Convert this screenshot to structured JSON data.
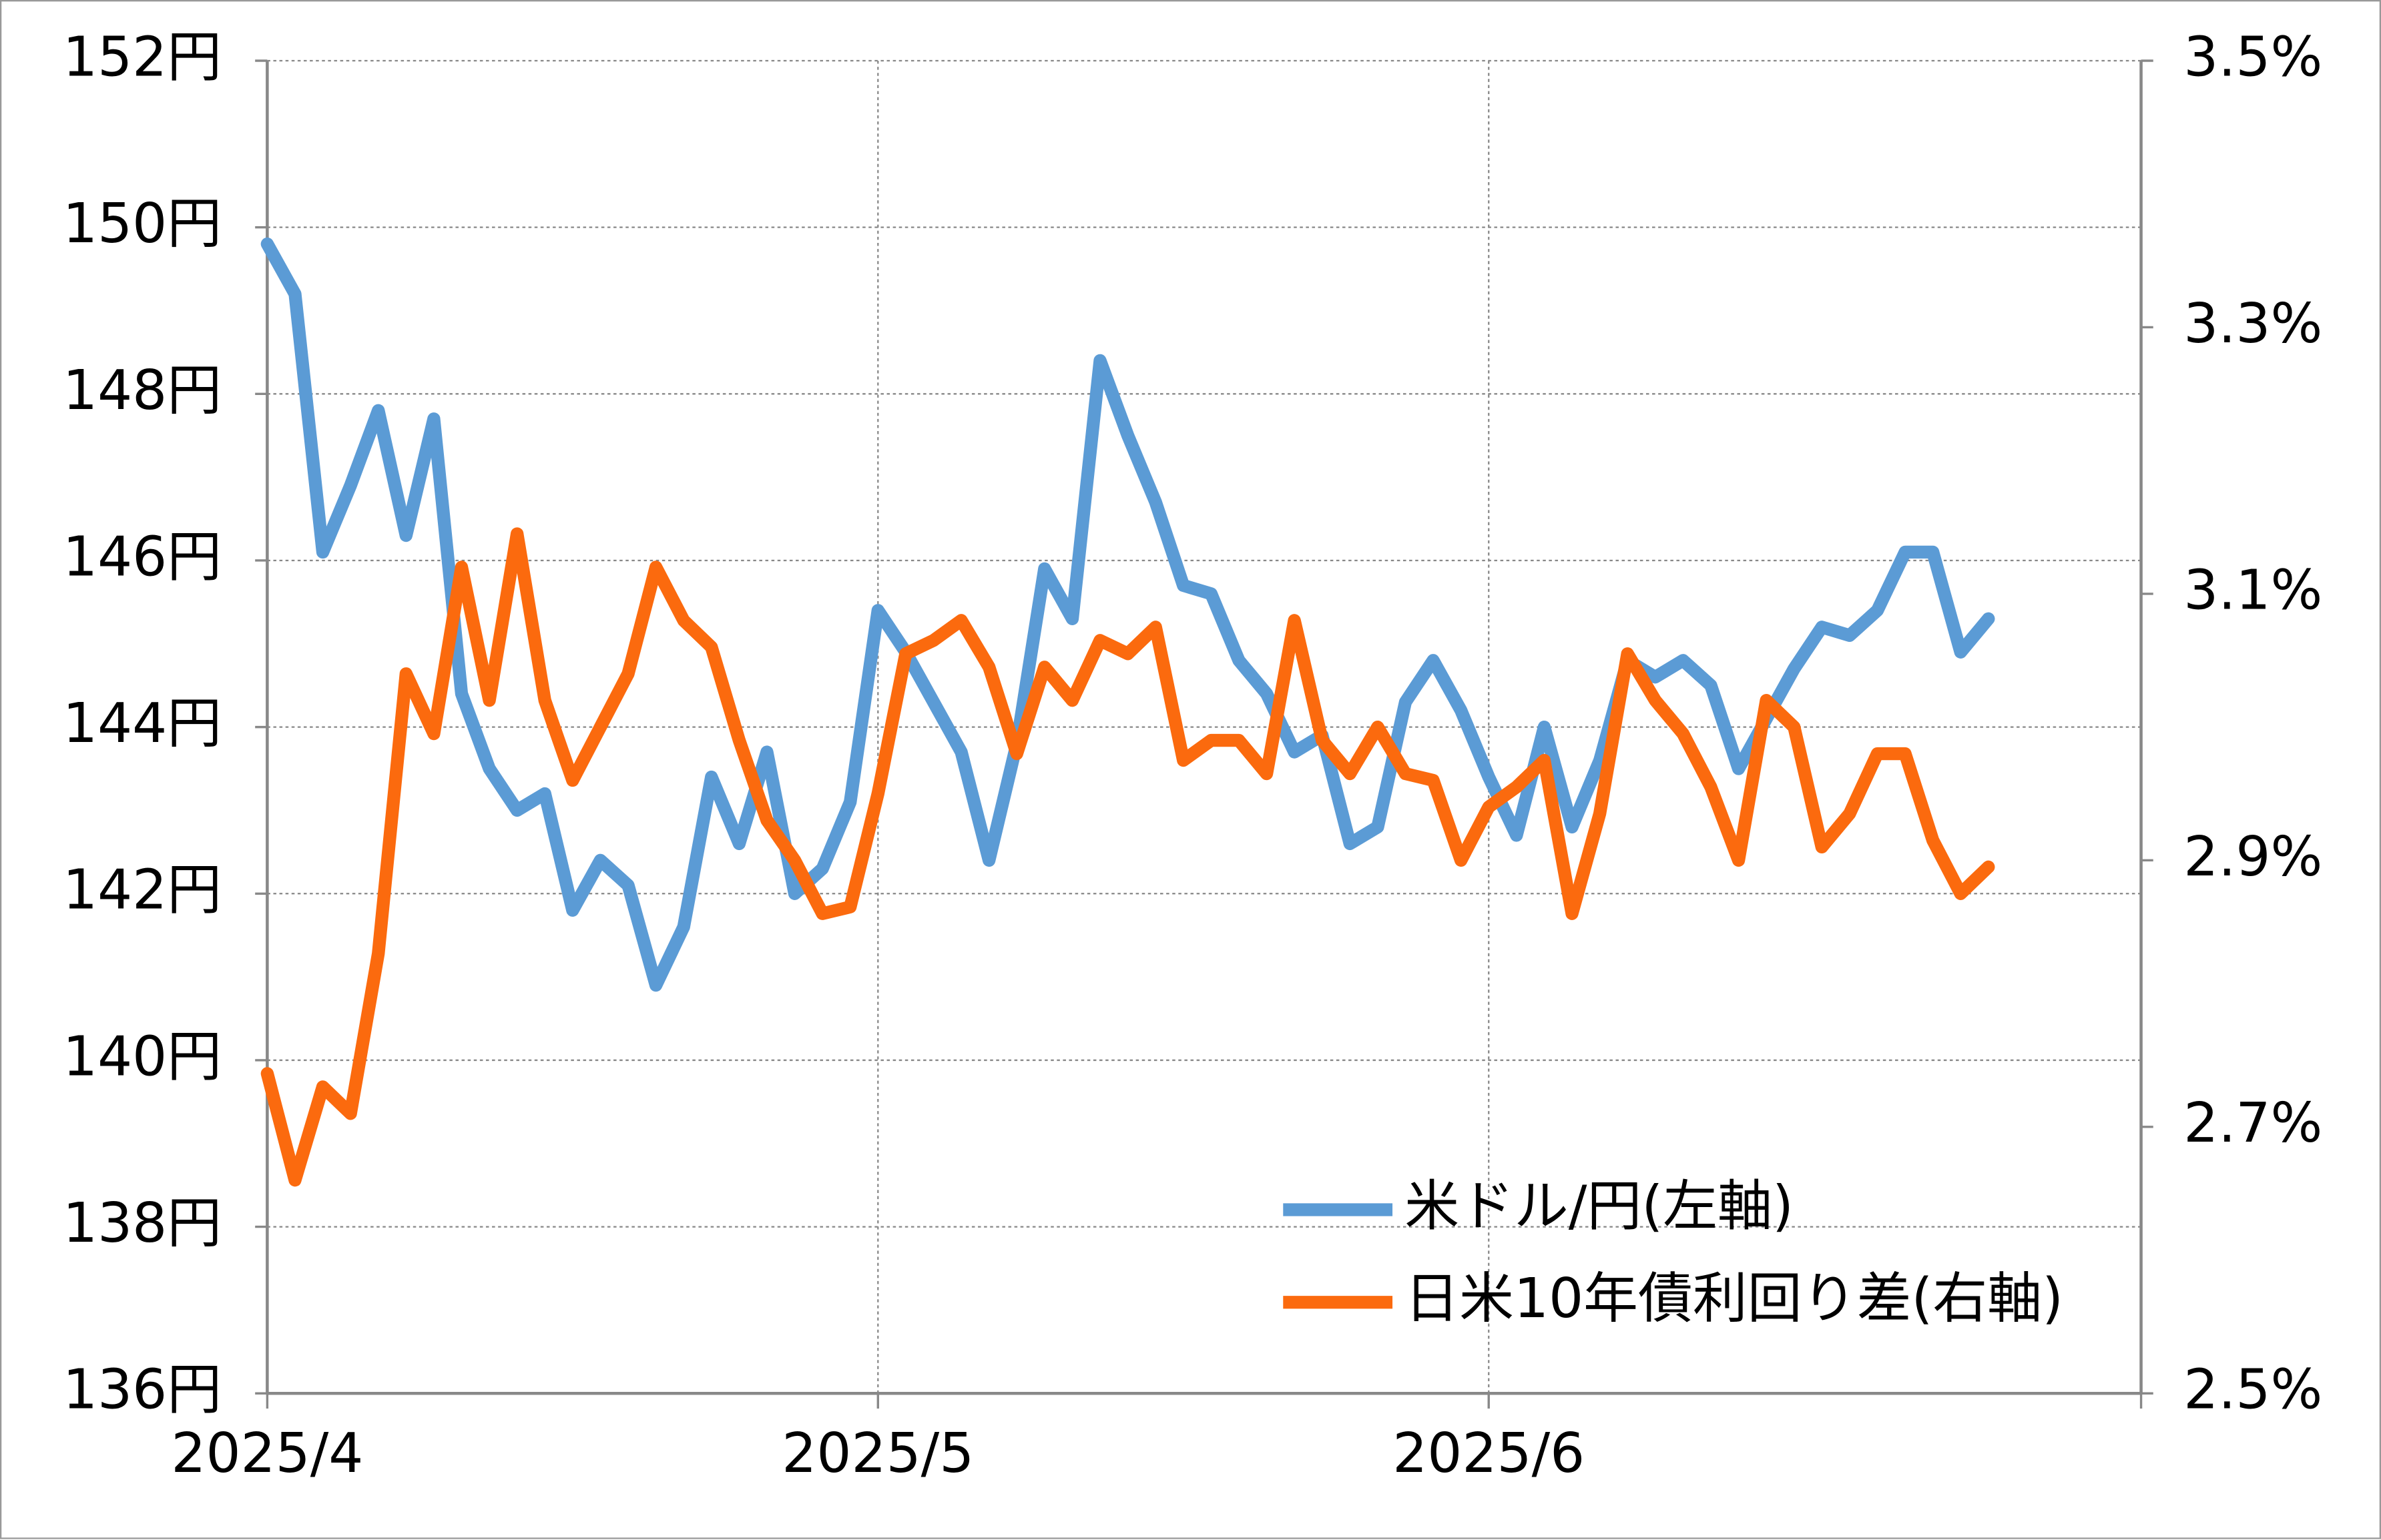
{
  "chart_data": {
    "type": "line",
    "categories": [
      "2025/4",
      null,
      null,
      null,
      null,
      null,
      null,
      null,
      null,
      null,
      null,
      null,
      null,
      null,
      null,
      null,
      null,
      null,
      null,
      null,
      null,
      null,
      "2025/5",
      null,
      null,
      null,
      null,
      null,
      null,
      null,
      null,
      null,
      null,
      null,
      null,
      null,
      null,
      null,
      null,
      null,
      null,
      null,
      null,
      null,
      "2025/6",
      null,
      null,
      null,
      null,
      null,
      null,
      null,
      null,
      null,
      null,
      null,
      null,
      null,
      null,
      null,
      null,
      null,
      null
    ],
    "series": [
      {
        "name": "米ドル/円(左軸)",
        "color": "#5b9bd5",
        "values": [
          149.8,
          149.2,
          146.1,
          146.9,
          147.8,
          146.3,
          147.7,
          144.4,
          143.5,
          143.0,
          143.2,
          141.8,
          142.4,
          142.1,
          140.9,
          141.6,
          143.4,
          142.6,
          143.7,
          142.0,
          142.3,
          143.1,
          145.4,
          144.9,
          144.3,
          143.7,
          142.4,
          143.8,
          145.9,
          145.3,
          148.4,
          147.5,
          146.7,
          145.7,
          145.6,
          144.8,
          144.4,
          143.7,
          143.9,
          142.6,
          142.8,
          144.3,
          144.8,
          144.2,
          143.4,
          142.7,
          144.0,
          142.8,
          143.6,
          144.8,
          144.6,
          144.8,
          144.5,
          143.5,
          144.1,
          144.7,
          145.2,
          145.1,
          145.4,
          146.1,
          146.1,
          144.9,
          145.3
        ]
      },
      {
        "name": "日米10年債利回り差(右軸)",
        "color": "#fb6a0e",
        "axis": "y2",
        "values": [
          2.74,
          2.66,
          2.73,
          2.71,
          2.83,
          3.04,
          2.995,
          3.12,
          3.02,
          3.145,
          3.02,
          2.96,
          3.0,
          3.04,
          3.12,
          3.08,
          3.06,
          2.99,
          2.93,
          2.9,
          2.86,
          2.865,
          2.95,
          3.055,
          3.065,
          3.08,
          3.045,
          2.98,
          3.045,
          3.02,
          3.065,
          3.055,
          3.075,
          2.975,
          2.99,
          2.99,
          2.965,
          3.08,
          2.99,
          2.965,
          3.0,
          2.965,
          2.96,
          2.9,
          2.94,
          2.955,
          2.975,
          2.86,
          2.935,
          3.055,
          3.02,
          2.995,
          2.955,
          2.9,
          3.02,
          3.0,
          2.91,
          2.935,
          2.98,
          2.98,
          2.915,
          2.875,
          2.895
        ]
      }
    ],
    "ylim": [
      136,
      152
    ],
    "yticks": [
      {
        "value": 136,
        "label": "136円"
      },
      {
        "value": 138,
        "label": "138円"
      },
      {
        "value": 140,
        "label": "140円"
      },
      {
        "value": 142,
        "label": "142円"
      },
      {
        "value": 144,
        "label": "144円"
      },
      {
        "value": 146,
        "label": "146円"
      },
      {
        "value": 148,
        "label": "148円"
      },
      {
        "value": 150,
        "label": "150円"
      },
      {
        "value": 152,
        "label": "152円"
      }
    ],
    "y2lim": [
      2.5,
      3.5
    ],
    "y2ticks": [
      {
        "value": 2.5,
        "label": "2.5%"
      },
      {
        "value": 2.7,
        "label": "2.7%"
      },
      {
        "value": 2.9,
        "label": "2.9%"
      },
      {
        "value": 3.1,
        "label": "3.1%"
      },
      {
        "value": 3.3,
        "label": "3.3%"
      },
      {
        "value": 3.5,
        "label": "3.5%"
      }
    ],
    "grid": true,
    "legend": "lower right"
  }
}
